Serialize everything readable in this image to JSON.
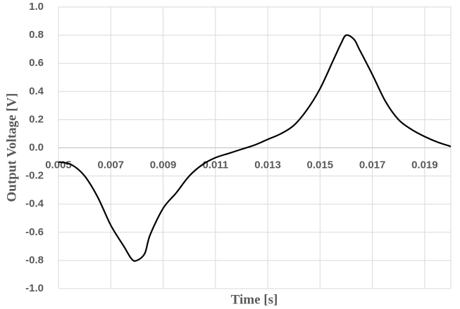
{
  "chart_data": {
    "type": "line",
    "x_label": "Time [s]",
    "y_label": "Output Voltage [V]",
    "x": [
      0.005,
      0.0055,
      0.006,
      0.0065,
      0.007,
      0.0075,
      0.0078,
      0.008,
      0.0083,
      0.0085,
      0.009,
      0.0095,
      0.01,
      0.0105,
      0.011,
      0.0115,
      0.012,
      0.0125,
      0.013,
      0.0135,
      0.014,
      0.0145,
      0.015,
      0.0155,
      0.0158,
      0.016,
      0.0163,
      0.0165,
      0.017,
      0.0175,
      0.018,
      0.0185,
      0.019,
      0.0195,
      0.02
    ],
    "series": [
      {
        "name": "Output Voltage",
        "color": "#000000",
        "values": [
          -0.1,
          -0.12,
          -0.2,
          -0.35,
          -0.55,
          -0.7,
          -0.79,
          -0.8,
          -0.75,
          -0.62,
          -0.43,
          -0.32,
          -0.2,
          -0.12,
          -0.07,
          -0.04,
          -0.01,
          0.02,
          0.06,
          0.1,
          0.16,
          0.27,
          0.42,
          0.62,
          0.74,
          0.8,
          0.77,
          0.7,
          0.52,
          0.33,
          0.2,
          0.13,
          0.08,
          0.04,
          0.01
        ]
      }
    ],
    "xlim": [
      0.005,
      0.02
    ],
    "xticks": [
      0.005,
      0.007,
      0.009,
      0.011,
      0.013,
      0.015,
      0.017,
      0.019
    ],
    "ylim": [
      -1,
      1
    ],
    "yticks": [
      {
        "value": -1,
        "label": "-1.0"
      },
      -0.8,
      -0.6,
      -0.4,
      -0.2,
      {
        "value": 0,
        "label": "0.0"
      },
      0.2,
      0.4,
      0.6,
      0.8,
      {
        "value": 1,
        "label": "1.0"
      }
    ],
    "grid": true
  }
}
